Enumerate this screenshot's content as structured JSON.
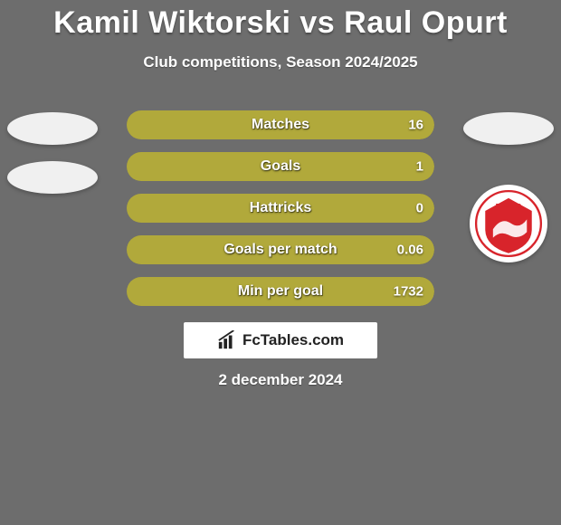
{
  "colors": {
    "bg": "#6d6d6d",
    "bar_accent": "#b1a93b",
    "bar_track": "#6d6d6d",
    "oval": "#f0f0f0",
    "crest_bg": "#ffffff",
    "crest_fg": "#d8242b",
    "branding_bg": "#ffffff",
    "branding_text": "#222222",
    "text": "#ffffff"
  },
  "header": {
    "title": "Kamil Wiktorski vs Raul Opurt",
    "subtitle": "Club competitions, Season 2024/2025"
  },
  "bars": [
    {
      "label": "Matches",
      "left": "",
      "right": "16",
      "left_pct": 0,
      "right_pct": 100
    },
    {
      "label": "Goals",
      "left": "",
      "right": "1",
      "left_pct": 0,
      "right_pct": 100
    },
    {
      "label": "Hattricks",
      "left": "",
      "right": "0",
      "left_pct": 0,
      "right_pct": 100
    },
    {
      "label": "Goals per match",
      "left": "",
      "right": "0.06",
      "left_pct": 0,
      "right_pct": 100
    },
    {
      "label": "Min per goal",
      "left": "",
      "right": "1732",
      "left_pct": 0,
      "right_pct": 100
    }
  ],
  "branding": {
    "text": "FcTables.com"
  },
  "date": "2 december 2024",
  "badges": {
    "left": {
      "type": "two_ovals"
    },
    "right": {
      "type": "oval_then_crest",
      "crest_label": "DINAMO"
    }
  }
}
